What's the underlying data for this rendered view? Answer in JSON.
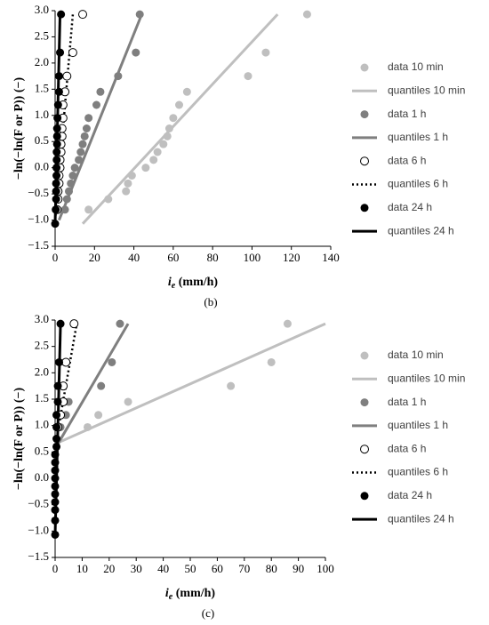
{
  "chart_data": [
    {
      "type": "scatter",
      "caption": "(b)",
      "y_label": "−ln(−ln(F or P)) (−)",
      "x_label": {
        "symbol": "i",
        "subscript": "e",
        "unit": " (mm/h)"
      },
      "xlim": [
        0,
        140
      ],
      "xticks": [
        0,
        20,
        40,
        60,
        80,
        100,
        120,
        140
      ],
      "ylim": [
        -1.5,
        3.0
      ],
      "yticks": [
        {
          "value": -1.5,
          "label": "−1.5"
        },
        {
          "value": -1,
          "label": "−1.0"
        },
        {
          "value": -0.5,
          "label": "−0.5"
        },
        {
          "value": 0,
          "label": "0.0"
        },
        {
          "value": 0.5,
          "label": "0.5"
        },
        {
          "value": 1,
          "label": "1.0"
        },
        {
          "value": 1.5,
          "label": "1.5"
        },
        {
          "value": 2,
          "label": "2.0"
        },
        {
          "value": 2.5,
          "label": "2.5"
        },
        {
          "value": 3,
          "label": "3.0"
        }
      ],
      "grid": false,
      "legend": "right",
      "series": [
        {
          "name": "data 10 min",
          "kind": "points",
          "color": "#bfbfbf",
          "x": [
            17,
            27,
            36,
            37,
            39,
            46,
            50,
            52,
            55,
            57,
            58,
            60,
            63,
            67,
            98,
            107,
            128
          ],
          "values": [
            -0.8,
            -0.6,
            -0.45,
            -0.3,
            -0.15,
            0,
            0.15,
            0.3,
            0.45,
            0.6,
            0.75,
            0.95,
            1.2,
            1.45,
            1.75,
            2.2,
            2.93
          ]
        },
        {
          "name": "quantiles 10 min",
          "kind": "line",
          "color": "#bfbfbf",
          "x": [
            14,
            113
          ],
          "values": [
            -1.07,
            2.93
          ]
        },
        {
          "name": "data 1 h",
          "kind": "points",
          "color": "#7f7f7f",
          "x": [
            5,
            6,
            7,
            8,
            9,
            10,
            12,
            13,
            14,
            15,
            16,
            17,
            21,
            23,
            32,
            41,
            43
          ],
          "values": [
            -0.8,
            -0.6,
            -0.45,
            -0.3,
            -0.15,
            0,
            0.15,
            0.3,
            0.45,
            0.6,
            0.75,
            0.95,
            1.2,
            1.45,
            1.75,
            2.2,
            2.93
          ]
        },
        {
          "name": "quantiles 1 h",
          "kind": "line",
          "color": "#7f7f7f",
          "x": [
            2,
            44
          ],
          "values": [
            -1.0,
            2.93
          ]
        },
        {
          "name": "data 6 h",
          "kind": "hollow",
          "color": "#000000",
          "x": [
            1,
            1.5,
            1.5,
            2,
            2,
            2.5,
            2.5,
            3,
            3,
            3.5,
            3.5,
            4,
            4,
            5,
            6,
            9,
            14
          ],
          "values": [
            -0.8,
            -0.6,
            -0.45,
            -0.3,
            -0.15,
            0,
            0.15,
            0.3,
            0.45,
            0.6,
            0.75,
            0.95,
            1.2,
            1.45,
            1.75,
            2.2,
            2.93
          ]
        },
        {
          "name": "quantiles 6 h",
          "kind": "dotted",
          "color": "#000000",
          "x": [
            0,
            9
          ],
          "values": [
            -1.0,
            2.93
          ]
        },
        {
          "name": "data 24 h",
          "kind": "points",
          "color": "#000000",
          "x": [
            0,
            0.3,
            0.5,
            0.5,
            0.5,
            0.7,
            0.7,
            0.8,
            0.8,
            1,
            1,
            1,
            1.2,
            1.5,
            2,
            2,
            2.5,
            3
          ],
          "values": [
            -1.07,
            -0.8,
            -0.6,
            -0.45,
            -0.3,
            -0.15,
            0,
            0.15,
            0.3,
            0.45,
            0.6,
            0.75,
            0.95,
            1.2,
            1.45,
            1.75,
            2.2,
            2.93
          ]
        },
        {
          "name": "quantiles 24 h",
          "kind": "line",
          "color": "#000000",
          "x": [
            0,
            2.5
          ],
          "values": [
            -1.07,
            2.93
          ]
        }
      ]
    },
    {
      "type": "scatter",
      "caption": "(c)",
      "y_label": "−ln(−ln(F or P)) (−)",
      "x_label": {
        "symbol": "i",
        "subscript": "e",
        "unit": " (mm/h)"
      },
      "xlim": [
        0,
        100
      ],
      "xticks": [
        0,
        10,
        20,
        30,
        40,
        50,
        60,
        70,
        80,
        90,
        100
      ],
      "ylim": [
        -1.5,
        3.0
      ],
      "yticks": [
        {
          "value": -1.5,
          "label": "−1.5"
        },
        {
          "value": -1,
          "label": "−1.0"
        },
        {
          "value": -0.5,
          "label": "−0.5"
        },
        {
          "value": 0,
          "label": "0.0"
        },
        {
          "value": 0.5,
          "label": "0.5"
        },
        {
          "value": 1,
          "label": "1.0"
        },
        {
          "value": 1.5,
          "label": "1.5"
        },
        {
          "value": 2,
          "label": "2.0"
        },
        {
          "value": 2.5,
          "label": "2.5"
        },
        {
          "value": 3,
          "label": "3.0"
        }
      ],
      "grid": false,
      "legend": "right",
      "series": [
        {
          "name": "data 10 min",
          "kind": "points",
          "color": "#bfbfbf",
          "x": [
            12,
            16,
            27,
            65,
            80,
            86
          ],
          "values": [
            0.97,
            1.2,
            1.45,
            1.75,
            2.2,
            2.93
          ]
        },
        {
          "name": "quantiles 10 min",
          "kind": "line",
          "color": "#bfbfbf",
          "x": [
            0,
            100
          ],
          "values": [
            0.65,
            2.93
          ]
        },
        {
          "name": "data 1 h",
          "kind": "points",
          "color": "#7f7f7f",
          "x": [
            2,
            4,
            5,
            17,
            21,
            24
          ],
          "values": [
            0.97,
            1.2,
            1.45,
            1.75,
            2.2,
            2.93
          ]
        },
        {
          "name": "quantiles 1 h",
          "kind": "line",
          "color": "#7f7f7f",
          "x": [
            1,
            27
          ],
          "values": [
            0.65,
            2.93
          ]
        },
        {
          "name": "data 6 h",
          "kind": "hollow",
          "color": "#000000",
          "x": [
            1,
            2,
            3,
            3,
            4,
            7
          ],
          "values": [
            0.97,
            1.2,
            1.45,
            1.75,
            2.2,
            2.93
          ]
        },
        {
          "name": "quantiles 6 h",
          "kind": "dotted",
          "color": "#000000",
          "x": [
            0,
            8
          ],
          "values": [
            0.6,
            2.93
          ]
        },
        {
          "name": "data 24 h",
          "kind": "points",
          "color": "#000000",
          "x": [
            0,
            0,
            0,
            0,
            0,
            0,
            0,
            0,
            0,
            0,
            0.5,
            0.5,
            0.5,
            0.5,
            1,
            1,
            1.5,
            2
          ],
          "values": [
            -1.07,
            -0.8,
            -0.6,
            -0.45,
            -0.3,
            -0.15,
            0,
            0.15,
            0.3,
            0.45,
            0.6,
            0.75,
            0.97,
            1.2,
            1.45,
            1.75,
            2.2,
            2.93
          ]
        },
        {
          "name": "quantiles 24 h",
          "kind": "line",
          "color": "#000000",
          "x": [
            0,
            2
          ],
          "values": [
            -1.07,
            2.93
          ]
        }
      ]
    }
  ]
}
